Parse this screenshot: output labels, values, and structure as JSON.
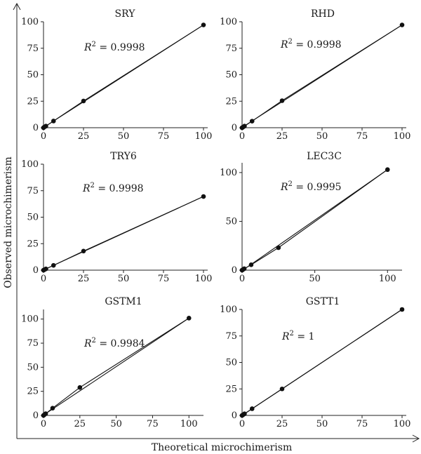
{
  "figure": {
    "xlabel": "Theoretical microchimerism",
    "ylabel": "Observed microchimerism"
  },
  "chart_data": [
    {
      "type": "scatter",
      "title": "SRY",
      "r2_label": "R",
      "r2_value": " = 0.9998",
      "xlim": [
        0,
        100
      ],
      "ylim": [
        0,
        100
      ],
      "xticks": [
        0,
        25,
        50,
        75,
        100
      ],
      "yticks": [
        0,
        25,
        50,
        75,
        100
      ],
      "points": [
        [
          0,
          0
        ],
        [
          0.5,
          0.6
        ],
        [
          1.5,
          1.5
        ],
        [
          6.25,
          6.3
        ],
        [
          25,
          25.2
        ],
        [
          100,
          97
        ]
      ],
      "fit": [
        [
          0,
          0.2
        ],
        [
          100,
          97
        ]
      ]
    },
    {
      "type": "scatter",
      "title": "RHD",
      "r2_label": "R",
      "r2_value": " = 0.9998",
      "xlim": [
        0,
        100
      ],
      "ylim": [
        0,
        100
      ],
      "xticks": [
        0,
        25,
        50,
        75,
        100
      ],
      "yticks": [
        0,
        25,
        50,
        75,
        100
      ],
      "points": [
        [
          0,
          0
        ],
        [
          0.5,
          0.5
        ],
        [
          1.5,
          1.5
        ],
        [
          6.25,
          6.2
        ],
        [
          25,
          25.5
        ],
        [
          100,
          97
        ]
      ],
      "fit": [
        [
          0,
          0.3
        ],
        [
          100,
          97
        ]
      ]
    },
    {
      "type": "scatter",
      "title": "TRY6",
      "r2_label": "R",
      "r2_value": " = 0.9998",
      "xlim": [
        0,
        100
      ],
      "ylim": [
        0,
        100
      ],
      "xticks": [
        0,
        25,
        50,
        75,
        100
      ],
      "yticks": [
        0,
        25,
        50,
        75,
        100
      ],
      "points": [
        [
          0,
          0
        ],
        [
          0.5,
          0.4
        ],
        [
          1.5,
          1.2
        ],
        [
          6.25,
          4.5
        ],
        [
          25,
          18
        ],
        [
          100,
          69.5
        ]
      ],
      "fit": [
        [
          0,
          0.2
        ],
        [
          100,
          69.5
        ]
      ]
    },
    {
      "type": "scatter",
      "title": "LEC3C",
      "r2_label": "R",
      "r2_value": " = 0.9995",
      "xlim": [
        0,
        110
      ],
      "ylim": [
        0,
        110
      ],
      "xticks": [
        0,
        50,
        100
      ],
      "yticks": [
        0,
        50,
        100
      ],
      "points": [
        [
          0,
          0
        ],
        [
          0.5,
          0.5
        ],
        [
          1.5,
          1.5
        ],
        [
          6.25,
          5.5
        ],
        [
          25,
          23
        ],
        [
          100,
          103
        ]
      ],
      "fit": [
        [
          0,
          -0.5
        ],
        [
          100,
          103
        ]
      ]
    },
    {
      "type": "scatter",
      "title": "GSTM1",
      "r2_label": "R",
      "r2_value": " = 0.9984",
      "xlim": [
        0,
        110
      ],
      "ylim": [
        0,
        110
      ],
      "xticks": [
        0,
        25,
        50,
        75,
        100
      ],
      "yticks": [
        0,
        25,
        50,
        75,
        100
      ],
      "points": [
        [
          0,
          0
        ],
        [
          0.5,
          0.6
        ],
        [
          1.5,
          1.8
        ],
        [
          6.25,
          7.5
        ],
        [
          25,
          29
        ],
        [
          100,
          101
        ]
      ],
      "fit": [
        [
          0,
          0.3
        ],
        [
          100,
          101
        ]
      ]
    },
    {
      "type": "scatter",
      "title": "GSTT1",
      "r2_label": "R",
      "r2_value": " = 1",
      "xlim": [
        0,
        100
      ],
      "ylim": [
        0,
        100
      ],
      "xticks": [
        0,
        25,
        50,
        75,
        100
      ],
      "yticks": [
        0,
        25,
        50,
        75,
        100
      ],
      "points": [
        [
          0,
          0
        ],
        [
          0.5,
          0.5
        ],
        [
          1.5,
          1.5
        ],
        [
          6.25,
          6.3
        ],
        [
          25,
          25
        ],
        [
          100,
          100
        ]
      ],
      "fit": [
        [
          0,
          0
        ],
        [
          100,
          100
        ]
      ]
    }
  ]
}
